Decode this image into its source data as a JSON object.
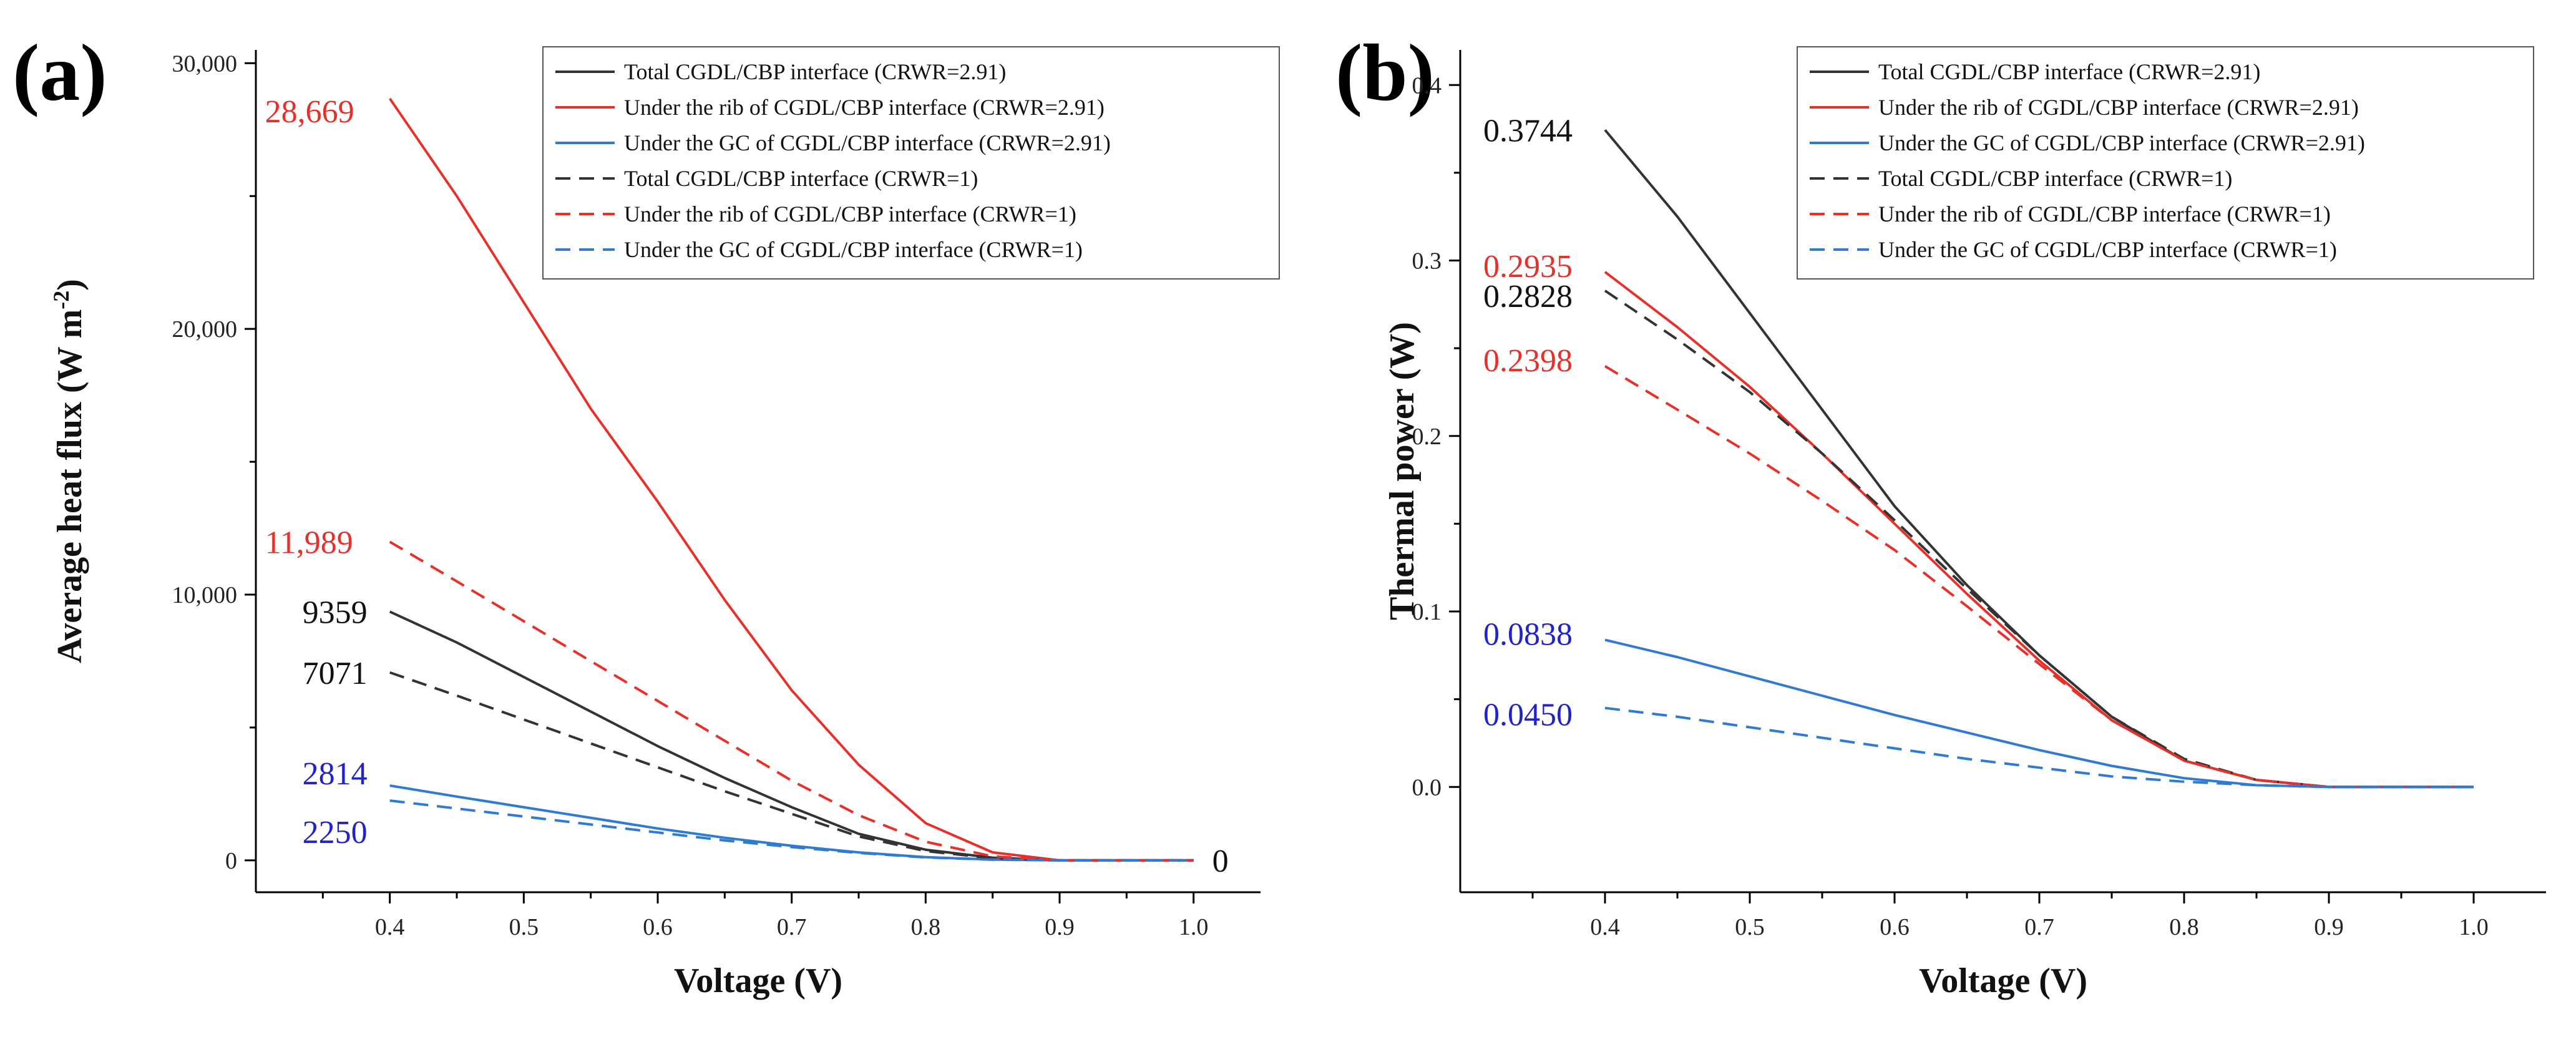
{
  "chart_data": [
    {
      "type": "line",
      "panel_label": "(a)",
      "title": "",
      "xlabel": "Voltage (V)",
      "ylabel_main": "Average heat flux (W m",
      "ylabel_sup": "-2",
      "ylabel_end": ")",
      "xlim": [
        0.3,
        1.05
      ],
      "ylim": [
        -1200,
        30500
      ],
      "xticks": [
        0.4,
        0.5,
        0.6,
        0.7,
        0.8,
        0.9,
        1.0
      ],
      "xtick_labels": [
        "0.4",
        "0.5",
        "0.6",
        "0.7",
        "0.8",
        "0.9",
        "1.0"
      ],
      "yticks": [
        0,
        10000,
        20000,
        30000
      ],
      "ytick_labels": [
        "0",
        "10,000",
        "20,000",
        "30,000"
      ],
      "x": [
        0.4,
        0.45,
        0.5,
        0.55,
        0.6,
        0.65,
        0.7,
        0.75,
        0.8,
        0.85,
        0.9,
        0.95,
        1.0
      ],
      "series": [
        {
          "name": "Total CGDL/CBP interface (CRWR=2.91)",
          "color": "#333333",
          "dash": "solid",
          "values": [
            9359,
            8200,
            6900,
            5600,
            4300,
            3100,
            2000,
            1000,
            400,
            100,
            0,
            0,
            0
          ]
        },
        {
          "name": "Under the rib of CGDL/CBP interface (CRWR=2.91)",
          "color": "#e8302b",
          "dash": "solid",
          "values": [
            28669,
            25000,
            21000,
            17000,
            13500,
            9800,
            6400,
            3600,
            1400,
            300,
            0,
            0,
            0
          ]
        },
        {
          "name": "Under the GC of CGDL/CBP interface (CRWR=2.91)",
          "color": "#2f7bd4",
          "dash": "solid",
          "values": [
            2814,
            2400,
            2000,
            1600,
            1200,
            850,
            550,
            300,
            120,
            30,
            0,
            0,
            0
          ]
        },
        {
          "name": "Total CGDL/CBP interface (CRWR=1)",
          "color": "#333333",
          "dash": "dashed",
          "values": [
            7071,
            6200,
            5300,
            4400,
            3500,
            2600,
            1750,
            900,
            350,
            80,
            0,
            0,
            0
          ]
        },
        {
          "name": "Under the rib of CGDL/CBP interface (CRWR=1)",
          "color": "#e8302b",
          "dash": "dashed",
          "values": [
            11989,
            10500,
            9000,
            7500,
            6000,
            4500,
            3000,
            1700,
            700,
            150,
            0,
            0,
            0
          ]
        },
        {
          "name": "Under the GC of CGDL/CBP interface (CRWR=1)",
          "color": "#2f7bd4",
          "dash": "dashed",
          "values": [
            2250,
            1950,
            1650,
            1350,
            1050,
            750,
            500,
            280,
            110,
            25,
            0,
            0,
            0
          ]
        }
      ],
      "annotations": [
        {
          "text": "28,669",
          "color": "#e8302b",
          "x": 0.4,
          "y": 28669
        },
        {
          "text": "11,989",
          "color": "#e8302b",
          "x": 0.4,
          "y": 11989
        },
        {
          "text": "9359",
          "color": "#111111",
          "x": 0.4,
          "y": 9359
        },
        {
          "text": "7071",
          "color": "#111111",
          "x": 0.4,
          "y": 7071
        },
        {
          "text": "2814",
          "color": "#2222cc",
          "x": 0.4,
          "y": 2814
        },
        {
          "text": "2250",
          "color": "#2222cc",
          "x": 0.4,
          "y": 2250
        },
        {
          "text": "0",
          "color": "#111111",
          "x": 1.0,
          "y": 0
        }
      ],
      "legend_position": "top-right"
    },
    {
      "type": "line",
      "panel_label": "(b)",
      "title": "",
      "xlabel": "Voltage (V)",
      "ylabel_main": "Thermal power (W)",
      "ylabel_sup": "",
      "ylabel_end": "",
      "xlim": [
        0.3,
        1.05
      ],
      "ylim": [
        -0.06,
        0.42
      ],
      "xticks": [
        0.4,
        0.5,
        0.6,
        0.7,
        0.8,
        0.9,
        1.0
      ],
      "xtick_labels": [
        "0.4",
        "0.5",
        "0.6",
        "0.7",
        "0.8",
        "0.9",
        "1.0"
      ],
      "yticks": [
        0.0,
        0.1,
        0.2,
        0.3,
        0.4
      ],
      "ytick_labels": [
        "0.0",
        "0.1",
        "0.2",
        "0.3",
        "0.4"
      ],
      "x": [
        0.4,
        0.45,
        0.5,
        0.55,
        0.6,
        0.65,
        0.7,
        0.75,
        0.8,
        0.85,
        0.9,
        0.95,
        1.0
      ],
      "series": [
        {
          "name": "Total CGDL/CBP interface (CRWR=2.91)",
          "color": "#333333",
          "dash": "solid",
          "values": [
            0.3744,
            0.325,
            0.27,
            0.215,
            0.16,
            0.115,
            0.075,
            0.04,
            0.015,
            0.004,
            0.0,
            0.0,
            0.0
          ]
        },
        {
          "name": "Under the rib of CGDL/CBP interface (CRWR=2.91)",
          "color": "#e8302b",
          "dash": "solid",
          "values": [
            0.2935,
            0.262,
            0.228,
            0.19,
            0.15,
            0.11,
            0.072,
            0.038,
            0.015,
            0.004,
            0.0,
            0.0,
            0.0
          ]
        },
        {
          "name": "Under the GC of CGDL/CBP interface (CRWR=2.91)",
          "color": "#2f7bd4",
          "dash": "solid",
          "values": [
            0.0838,
            0.074,
            0.063,
            0.052,
            0.041,
            0.031,
            0.021,
            0.012,
            0.005,
            0.001,
            0.0,
            0.0,
            0.0
          ]
        },
        {
          "name": "Total CGDL/CBP interface (CRWR=1)",
          "color": "#333333",
          "dash": "dashed",
          "values": [
            0.2828,
            0.255,
            0.225,
            0.19,
            0.152,
            0.113,
            0.075,
            0.04,
            0.016,
            0.004,
            0.0,
            0.0,
            0.0
          ]
        },
        {
          "name": "Under the rib of CGDL/CBP interface (CRWR=1)",
          "color": "#e8302b",
          "dash": "dashed",
          "values": [
            0.2398,
            0.215,
            0.19,
            0.163,
            0.135,
            0.103,
            0.07,
            0.038,
            0.015,
            0.004,
            0.0,
            0.0,
            0.0
          ]
        },
        {
          "name": "Under the GC of CGDL/CBP interface (CRWR=1)",
          "color": "#2f7bd4",
          "dash": "dashed",
          "values": [
            0.045,
            0.04,
            0.034,
            0.028,
            0.022,
            0.016,
            0.011,
            0.006,
            0.003,
            0.001,
            0.0,
            0.0,
            0.0
          ]
        }
      ],
      "annotations": [
        {
          "text": "0.3744",
          "color": "#111111",
          "x": 0.4,
          "y": 0.3744
        },
        {
          "text": "0.2935",
          "color": "#e8302b",
          "x": 0.4,
          "y": 0.2935
        },
        {
          "text": "0.2828",
          "color": "#111111",
          "x": 0.4,
          "y": 0.2828
        },
        {
          "text": "0.2398",
          "color": "#e8302b",
          "x": 0.4,
          "y": 0.2398
        },
        {
          "text": "0.0838",
          "color": "#2222cc",
          "x": 0.4,
          "y": 0.0838
        },
        {
          "text": "0.0450",
          "color": "#2222cc",
          "x": 0.4,
          "y": 0.045
        }
      ],
      "legend_position": "top-right"
    }
  ]
}
